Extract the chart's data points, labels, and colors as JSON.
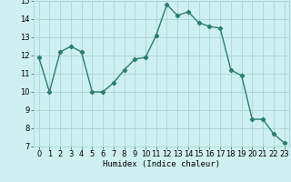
{
  "x": [
    0,
    1,
    2,
    3,
    4,
    5,
    6,
    7,
    8,
    9,
    10,
    11,
    12,
    13,
    14,
    15,
    16,
    17,
    18,
    19,
    20,
    21,
    22,
    23
  ],
  "y": [
    11.9,
    10.0,
    12.2,
    12.5,
    12.2,
    10.0,
    10.0,
    10.5,
    11.2,
    11.8,
    11.9,
    13.1,
    14.8,
    14.2,
    14.4,
    13.8,
    13.6,
    13.5,
    11.2,
    10.9,
    8.5,
    8.5,
    7.7,
    7.2
  ],
  "line_color": "#2d7d6b",
  "marker": "D",
  "marker_size": 2.2,
  "linewidth": 1.0,
  "bg_color": "#cff0f0",
  "grid_color": "#aad4d4",
  "xlabel": "Humidex (Indice chaleur)",
  "xlim": [
    -0.5,
    23.5
  ],
  "ylim": [
    7,
    15
  ],
  "yticks": [
    7,
    8,
    9,
    10,
    11,
    12,
    13,
    14,
    15
  ],
  "xticks": [
    0,
    1,
    2,
    3,
    4,
    5,
    6,
    7,
    8,
    9,
    10,
    11,
    12,
    13,
    14,
    15,
    16,
    17,
    18,
    19,
    20,
    21,
    22,
    23
  ],
  "xlabel_fontsize": 6.5,
  "tick_fontsize": 6.0
}
